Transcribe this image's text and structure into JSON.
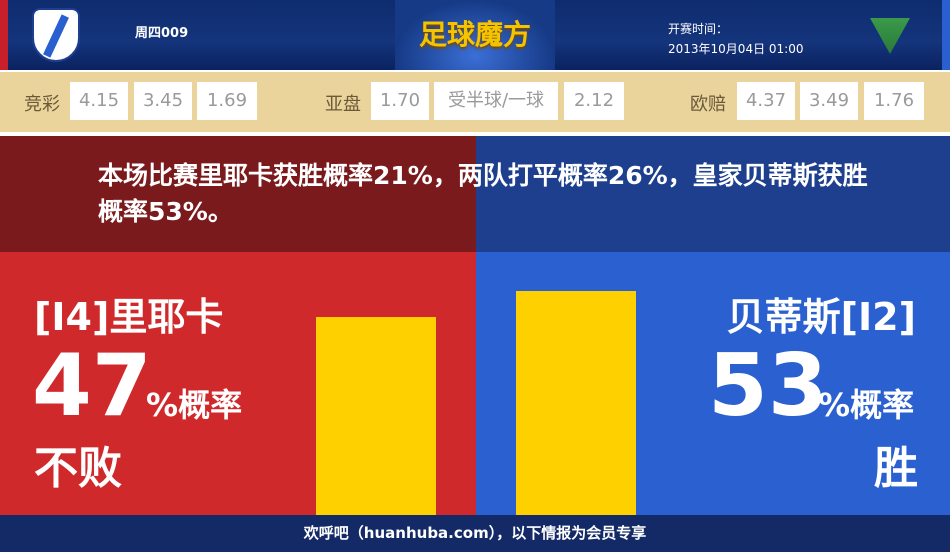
{
  "header": {
    "match_code": "周四009",
    "brand": "足球魔方",
    "kickoff_label": "开赛时间：",
    "kickoff_time": "2013年10月04日 01:00"
  },
  "odds": {
    "jingcai": {
      "label": "竞彩",
      "values": [
        "4.15",
        "3.45",
        "1.69"
      ]
    },
    "yapan": {
      "label": "亚盘",
      "values": [
        "1.70",
        "受半球/一球",
        "2.12"
      ]
    },
    "oupei": {
      "label": "欧赔",
      "values": [
        "4.37",
        "3.49",
        "1.76"
      ]
    }
  },
  "summary": "本场比赛里耶卡获胜概率21%，两队打平概率26%，皇家贝蒂斯获胜概率53%。",
  "home": {
    "name": "[I4]里耶卡",
    "percent": "47",
    "percent_label": "%概率",
    "result": "不败",
    "value": 47,
    "color": "#d0292c"
  },
  "away": {
    "name": "贝蒂斯[I2]",
    "percent": "53",
    "percent_label": "%概率",
    "result": "胜",
    "value": 53,
    "color": "#2a60cf"
  },
  "bar_color": "#ffd000",
  "footer": "欢呼吧（huanhuba.com），以下情报为会员专享"
}
